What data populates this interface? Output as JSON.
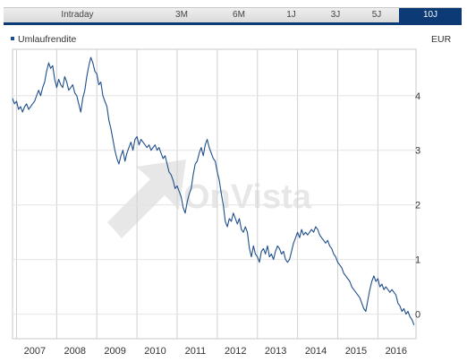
{
  "tabs": [
    {
      "label": "Intraday",
      "active": false
    },
    {
      "label": "3M",
      "active": false
    },
    {
      "label": "6M",
      "active": false
    },
    {
      "label": "1J",
      "active": false
    },
    {
      "label": "3J",
      "active": false
    },
    {
      "label": "5J",
      "active": false
    },
    {
      "label": "10J",
      "active": true
    }
  ],
  "watermark": "OnVista",
  "colors": {
    "accent": "#0b3a75",
    "line": "#1f4e8c",
    "grid": "#d0d0d0"
  },
  "chart_data": {
    "type": "line",
    "series": [
      {
        "name": "Umlaufrendite",
        "points": [
          [
            2006.4,
            3.95
          ],
          [
            2006.45,
            3.85
          ],
          [
            2006.5,
            3.9
          ],
          [
            2006.55,
            3.75
          ],
          [
            2006.6,
            3.8
          ],
          [
            2006.65,
            3.7
          ],
          [
            2006.7,
            3.8
          ],
          [
            2006.75,
            3.85
          ],
          [
            2006.8,
            3.75
          ],
          [
            2006.85,
            3.8
          ],
          [
            2006.9,
            3.85
          ],
          [
            2006.95,
            3.9
          ],
          [
            2007.0,
            4.0
          ],
          [
            2007.05,
            4.1
          ],
          [
            2007.1,
            4.0
          ],
          [
            2007.15,
            4.15
          ],
          [
            2007.2,
            4.25
          ],
          [
            2007.25,
            4.45
          ],
          [
            2007.3,
            4.6
          ],
          [
            2007.35,
            4.5
          ],
          [
            2007.4,
            4.55
          ],
          [
            2007.45,
            4.3
          ],
          [
            2007.5,
            4.15
          ],
          [
            2007.55,
            4.3
          ],
          [
            2007.6,
            4.2
          ],
          [
            2007.65,
            4.15
          ],
          [
            2007.7,
            4.35
          ],
          [
            2007.75,
            4.25
          ],
          [
            2007.8,
            4.1
          ],
          [
            2007.85,
            4.15
          ],
          [
            2007.9,
            4.2
          ],
          [
            2007.95,
            4.05
          ],
          [
            2008.0,
            4.0
          ],
          [
            2008.05,
            3.85
          ],
          [
            2008.1,
            3.7
          ],
          [
            2008.15,
            3.95
          ],
          [
            2008.2,
            4.1
          ],
          [
            2008.25,
            4.35
          ],
          [
            2008.3,
            4.55
          ],
          [
            2008.35,
            4.7
          ],
          [
            2008.4,
            4.6
          ],
          [
            2008.45,
            4.45
          ],
          [
            2008.5,
            4.4
          ],
          [
            2008.55,
            4.2
          ],
          [
            2008.6,
            4.25
          ],
          [
            2008.65,
            4.0
          ],
          [
            2008.7,
            3.9
          ],
          [
            2008.75,
            3.8
          ],
          [
            2008.8,
            3.55
          ],
          [
            2008.85,
            3.4
          ],
          [
            2008.9,
            3.2
          ],
          [
            2008.95,
            3.0
          ],
          [
            2009.0,
            2.85
          ],
          [
            2009.05,
            2.75
          ],
          [
            2009.1,
            2.9
          ],
          [
            2009.15,
            3.0
          ],
          [
            2009.2,
            2.8
          ],
          [
            2009.25,
            2.95
          ],
          [
            2009.3,
            3.05
          ],
          [
            2009.35,
            3.15
          ],
          [
            2009.4,
            3.0
          ],
          [
            2009.45,
            3.2
          ],
          [
            2009.5,
            3.25
          ],
          [
            2009.55,
            3.1
          ],
          [
            2009.6,
            3.2
          ],
          [
            2009.65,
            3.15
          ],
          [
            2009.7,
            3.1
          ],
          [
            2009.75,
            3.05
          ],
          [
            2009.8,
            3.1
          ],
          [
            2009.85,
            3.0
          ],
          [
            2009.9,
            3.05
          ],
          [
            2009.95,
            3.1
          ],
          [
            2010.0,
            3.0
          ],
          [
            2010.05,
            3.05
          ],
          [
            2010.1,
            2.95
          ],
          [
            2010.15,
            2.85
          ],
          [
            2010.2,
            2.9
          ],
          [
            2010.25,
            2.75
          ],
          [
            2010.3,
            2.6
          ],
          [
            2010.35,
            2.55
          ],
          [
            2010.4,
            2.45
          ],
          [
            2010.45,
            2.3
          ],
          [
            2010.5,
            2.35
          ],
          [
            2010.55,
            2.25
          ],
          [
            2010.6,
            2.15
          ],
          [
            2010.65,
            1.95
          ],
          [
            2010.7,
            1.85
          ],
          [
            2010.75,
            2.05
          ],
          [
            2010.8,
            2.2
          ],
          [
            2010.85,
            2.3
          ],
          [
            2010.9,
            2.55
          ],
          [
            2010.95,
            2.75
          ],
          [
            2011.0,
            2.8
          ],
          [
            2011.05,
            2.95
          ],
          [
            2011.1,
            3.05
          ],
          [
            2011.15,
            2.9
          ],
          [
            2011.2,
            3.1
          ],
          [
            2011.25,
            3.2
          ],
          [
            2011.3,
            3.05
          ],
          [
            2011.35,
            2.95
          ],
          [
            2011.4,
            2.85
          ],
          [
            2011.45,
            2.8
          ],
          [
            2011.5,
            2.6
          ],
          [
            2011.55,
            2.45
          ],
          [
            2011.6,
            2.2
          ],
          [
            2011.65,
            2.0
          ],
          [
            2011.7,
            1.7
          ],
          [
            2011.75,
            1.6
          ],
          [
            2011.8,
            1.75
          ],
          [
            2011.85,
            1.7
          ],
          [
            2011.9,
            1.85
          ],
          [
            2011.95,
            1.75
          ],
          [
            2012.0,
            1.65
          ],
          [
            2012.05,
            1.75
          ],
          [
            2012.1,
            1.55
          ],
          [
            2012.15,
            1.5
          ],
          [
            2012.2,
            1.6
          ],
          [
            2012.25,
            1.5
          ],
          [
            2012.3,
            1.2
          ],
          [
            2012.35,
            1.05
          ],
          [
            2012.4,
            1.25
          ],
          [
            2012.45,
            1.1
          ],
          [
            2012.5,
            1.05
          ],
          [
            2012.55,
            0.95
          ],
          [
            2012.6,
            1.15
          ],
          [
            2012.65,
            1.2
          ],
          [
            2012.7,
            1.1
          ],
          [
            2012.75,
            1.25
          ],
          [
            2012.8,
            1.05
          ],
          [
            2012.85,
            1.1
          ],
          [
            2012.9,
            1.0
          ],
          [
            2012.95,
            1.15
          ],
          [
            2013.0,
            1.25
          ],
          [
            2013.05,
            1.2
          ],
          [
            2013.1,
            1.1
          ],
          [
            2013.15,
            1.15
          ],
          [
            2013.2,
            1.0
          ],
          [
            2013.25,
            0.95
          ],
          [
            2013.3,
            1.0
          ],
          [
            2013.35,
            1.15
          ],
          [
            2013.4,
            1.3
          ],
          [
            2013.45,
            1.4
          ],
          [
            2013.5,
            1.5
          ],
          [
            2013.55,
            1.4
          ],
          [
            2013.6,
            1.55
          ],
          [
            2013.65,
            1.45
          ],
          [
            2013.7,
            1.5
          ],
          [
            2013.75,
            1.45
          ],
          [
            2013.8,
            1.5
          ],
          [
            2013.85,
            1.55
          ],
          [
            2013.9,
            1.5
          ],
          [
            2013.95,
            1.6
          ],
          [
            2014.0,
            1.55
          ],
          [
            2014.05,
            1.45
          ],
          [
            2014.1,
            1.4
          ],
          [
            2014.15,
            1.35
          ],
          [
            2014.2,
            1.3
          ],
          [
            2014.25,
            1.35
          ],
          [
            2014.3,
            1.25
          ],
          [
            2014.35,
            1.2
          ],
          [
            2014.4,
            1.1
          ],
          [
            2014.45,
            1.05
          ],
          [
            2014.5,
            0.95
          ],
          [
            2014.55,
            0.9
          ],
          [
            2014.6,
            0.85
          ],
          [
            2014.65,
            0.75
          ],
          [
            2014.7,
            0.7
          ],
          [
            2014.75,
            0.65
          ],
          [
            2014.8,
            0.6
          ],
          [
            2014.85,
            0.5
          ],
          [
            2014.9,
            0.45
          ],
          [
            2014.95,
            0.4
          ],
          [
            2015.0,
            0.35
          ],
          [
            2015.05,
            0.3
          ],
          [
            2015.1,
            0.2
          ],
          [
            2015.15,
            0.1
          ],
          [
            2015.2,
            0.05
          ],
          [
            2015.25,
            0.25
          ],
          [
            2015.3,
            0.45
          ],
          [
            2015.35,
            0.6
          ],
          [
            2015.4,
            0.7
          ],
          [
            2015.45,
            0.6
          ],
          [
            2015.5,
            0.65
          ],
          [
            2015.55,
            0.5
          ],
          [
            2015.6,
            0.55
          ],
          [
            2015.65,
            0.45
          ],
          [
            2015.7,
            0.5
          ],
          [
            2015.75,
            0.45
          ],
          [
            2015.8,
            0.4
          ],
          [
            2015.85,
            0.45
          ],
          [
            2015.9,
            0.4
          ],
          [
            2015.95,
            0.35
          ],
          [
            2016.0,
            0.2
          ],
          [
            2016.05,
            0.15
          ],
          [
            2016.1,
            0.05
          ],
          [
            2016.15,
            0.1
          ],
          [
            2016.2,
            0.0
          ],
          [
            2016.25,
            0.05
          ],
          [
            2016.3,
            -0.05
          ],
          [
            2016.35,
            -0.1
          ],
          [
            2016.4,
            -0.2
          ]
        ]
      }
    ],
    "x_ticks": [
      "2007",
      "2008",
      "2009",
      "2010",
      "2011",
      "2012",
      "2013",
      "2014",
      "2015",
      "2016"
    ],
    "x_tick_values": [
      2007,
      2008,
      2009,
      2010,
      2011,
      2012,
      2013,
      2014,
      2015,
      2016
    ],
    "y_ticks": [
      "4",
      "3",
      "2",
      "1",
      "0"
    ],
    "y_tick_values": [
      4,
      3,
      2,
      1,
      0
    ],
    "xlim": [
      2006.4,
      2016.45
    ],
    "ylim": [
      -0.45,
      4.85
    ],
    "y_unit": "EUR",
    "grid": true,
    "legend": "top-left"
  }
}
